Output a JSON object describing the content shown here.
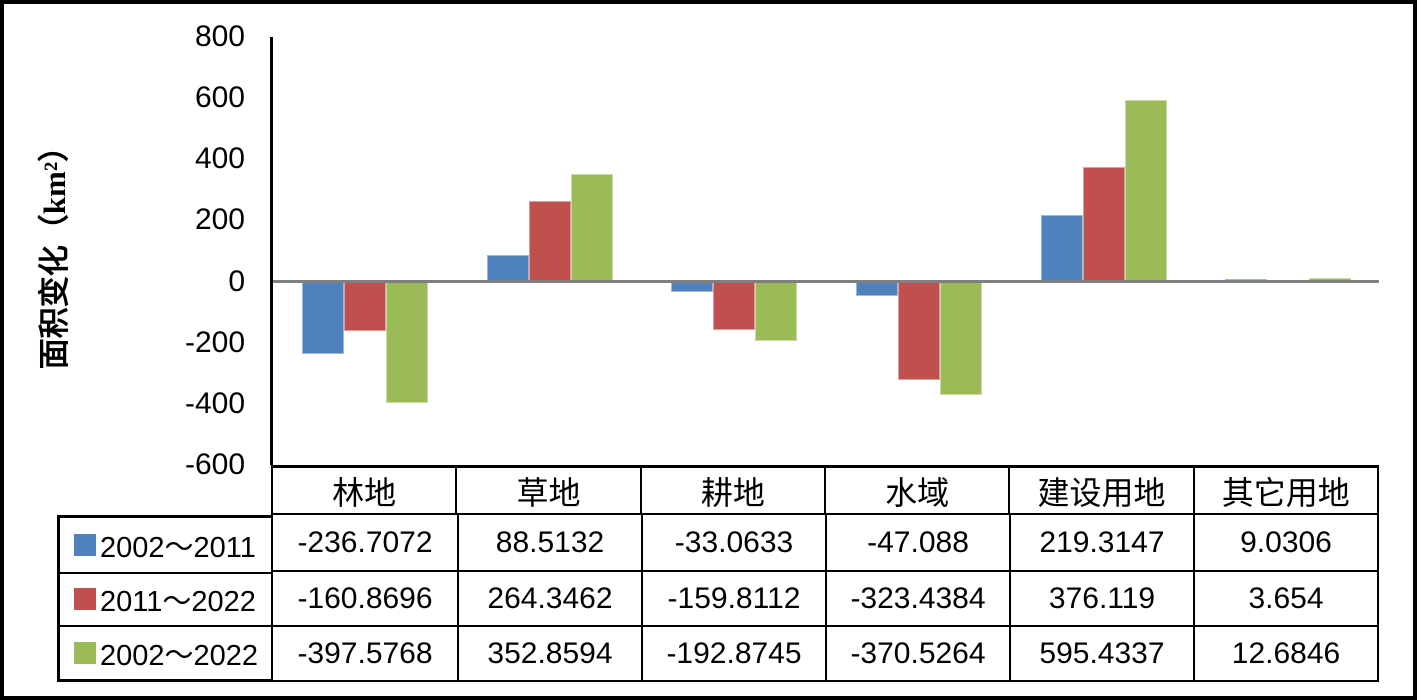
{
  "chart_data": {
    "type": "bar",
    "title": "",
    "xlabel": "",
    "ylabel": "面积变化（km²）",
    "ylim": [
      -600,
      800
    ],
    "ytick_step": 200,
    "yticks": [
      "800",
      "600",
      "400",
      "200",
      "0",
      "-200",
      "-400",
      "-600"
    ],
    "grid": false,
    "legend_position": "table-left-column",
    "categories": [
      "林地",
      "草地",
      "耕地",
      "水域",
      "建设用地",
      "其它用地"
    ],
    "series": [
      {
        "name": "2002～2011",
        "color": "#4F81BD",
        "values": [
          "-236.7072",
          "88.5132",
          "-33.0633",
          "-47.088",
          "219.3147",
          "9.0306"
        ]
      },
      {
        "name": "2011～2022",
        "color": "#C0504D",
        "values": [
          "-160.8696",
          "264.3462",
          "-159.8112",
          "-323.4384",
          "376.119",
          "3.654"
        ]
      },
      {
        "name": "2002～2022",
        "color": "#9BBB59",
        "values": [
          "-397.5768",
          "352.8594",
          "-192.8745",
          "-370.5264",
          "595.4337",
          "12.6846"
        ]
      }
    ]
  },
  "colors": {
    "axis": "#000000",
    "zero_line": "#7F7F7F",
    "table_border": "#000000",
    "background": "#FFFFFF"
  }
}
